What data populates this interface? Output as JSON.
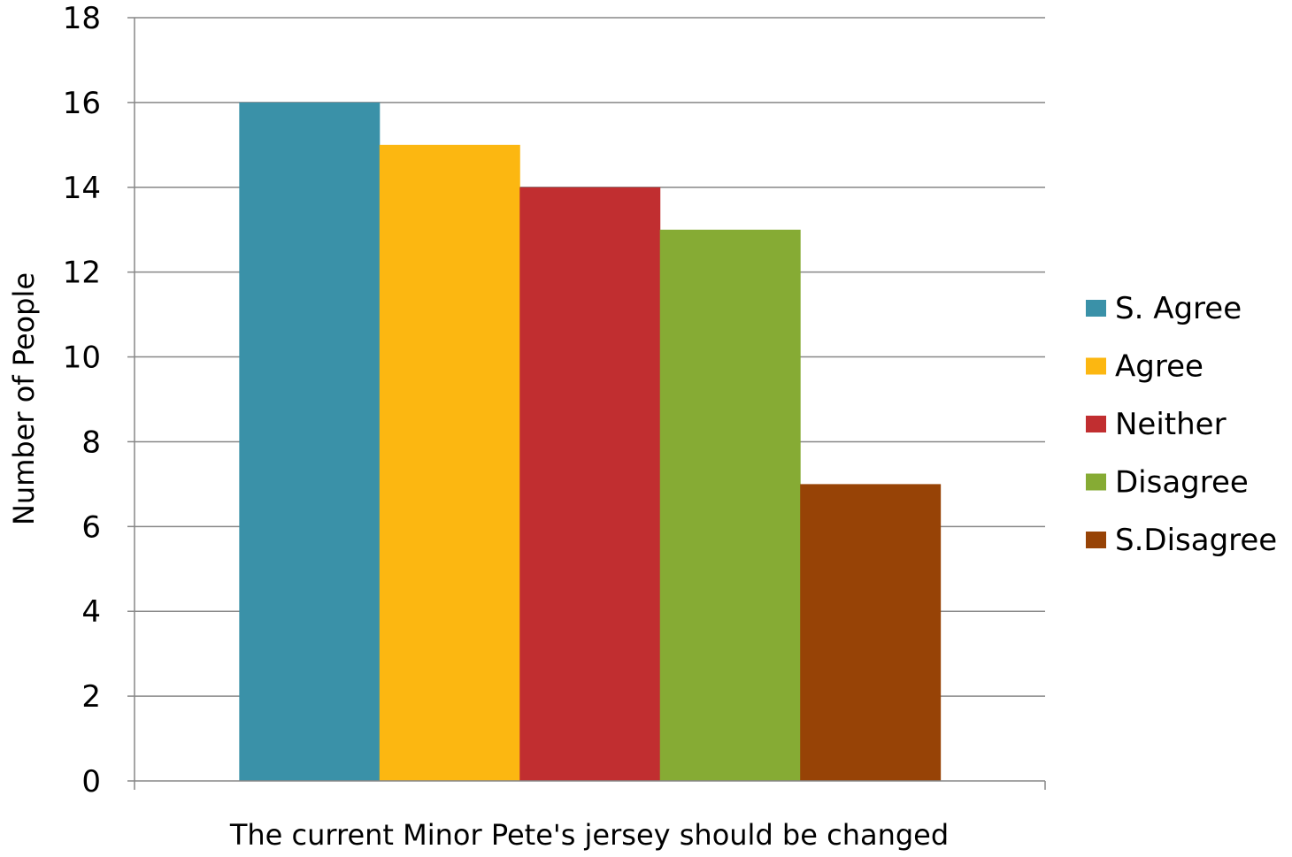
{
  "chart_data": {
    "type": "bar",
    "title": "",
    "xlabel": "The current Minor Pete's jersey should be changed",
    "ylabel": "Number of People",
    "ylim": [
      0,
      18
    ],
    "yticks": [
      0,
      2,
      4,
      6,
      8,
      10,
      12,
      14,
      16,
      18
    ],
    "grid": true,
    "legend_position": "right",
    "categories": [
      "The current Minor Pete's jersey should be changed"
    ],
    "series": [
      {
        "name": "S. Agree",
        "values": [
          16
        ],
        "color": "#3A91A8"
      },
      {
        "name": "Agree",
        "values": [
          15
        ],
        "color": "#FCB711"
      },
      {
        "name": "Neither",
        "values": [
          14
        ],
        "color": "#C12E30"
      },
      {
        "name": "Disagree",
        "values": [
          13
        ],
        "color": "#86AB34"
      },
      {
        "name": "S.Disagree",
        "values": [
          7
        ],
        "color": "#974306"
      }
    ]
  }
}
